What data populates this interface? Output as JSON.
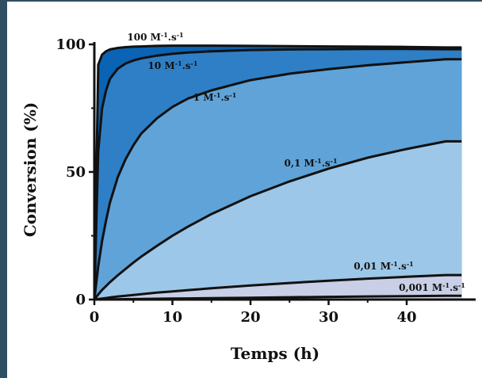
{
  "chart_data": {
    "type": "area",
    "xlabel": "Temps (h)",
    "ylabel": "Conversion (%)",
    "xlim": [
      0,
      45
    ],
    "ylim": [
      0,
      100
    ],
    "x_ticks": [
      "0",
      "10",
      "20",
      "30",
      "40"
    ],
    "y_ticks": [
      "0",
      "50",
      "100"
    ],
    "grid": false,
    "x": [
      0,
      0.5,
      1,
      1.5,
      2,
      3,
      4,
      5,
      6,
      8,
      10,
      12,
      15,
      20,
      25,
      30,
      35,
      40,
      45
    ],
    "series": [
      {
        "name": "100 M⁻¹.s⁻¹",
        "fill": "#0a63b4",
        "values": [
          0,
          92,
          96,
          97.3,
          98,
          98.6,
          98.9,
          99.1,
          99.2,
          99.4,
          99.5,
          99.5,
          99.5,
          99.4,
          99.3,
          99.2,
          99.1,
          99.0,
          98.8
        ]
      },
      {
        "name": "10 M⁻¹.s⁻¹",
        "fill": "#2f7fc6",
        "values": [
          0,
          58,
          75,
          82,
          86.5,
          90.5,
          92.5,
          93.7,
          94.5,
          95.6,
          96.3,
          96.8,
          97.3,
          97.8,
          98.0,
          98.1,
          98.2,
          98.2,
          98.1
        ]
      },
      {
        "name": "1 M⁻¹.s⁻¹",
        "fill": "#5fa3d8",
        "values": [
          0,
          13,
          23,
          31,
          38,
          48,
          55,
          60.5,
          65,
          71,
          75.5,
          78.8,
          82,
          86,
          88.5,
          90.3,
          91.8,
          93,
          94.2
        ]
      },
      {
        "name": "0,1 M⁻¹.s⁻¹",
        "fill": "#9dc7e8",
        "values": [
          0,
          2,
          3.8,
          5.3,
          6.8,
          9.5,
          12,
          14.5,
          16.8,
          21,
          25,
          28.6,
          33.5,
          40.5,
          46.3,
          51.3,
          55.6,
          59,
          62
        ]
      },
      {
        "name": "0,01 M⁻¹.s⁻¹",
        "fill": "#c8cfe6",
        "values": [
          0,
          0.2,
          0.4,
          0.6,
          0.8,
          1.2,
          1.5,
          1.8,
          2.1,
          2.7,
          3.2,
          3.7,
          4.4,
          5.5,
          6.5,
          7.4,
          8.2,
          8.9,
          9.6
        ]
      },
      {
        "name": "0,001 M⁻¹.s⁻¹",
        "fill": "#dcdcf0",
        "values": [
          0,
          0.02,
          0.04,
          0.06,
          0.08,
          0.12,
          0.16,
          0.2,
          0.24,
          0.3,
          0.37,
          0.44,
          0.55,
          0.72,
          0.9,
          1.05,
          1.2,
          1.35,
          1.5
        ]
      }
    ]
  }
}
